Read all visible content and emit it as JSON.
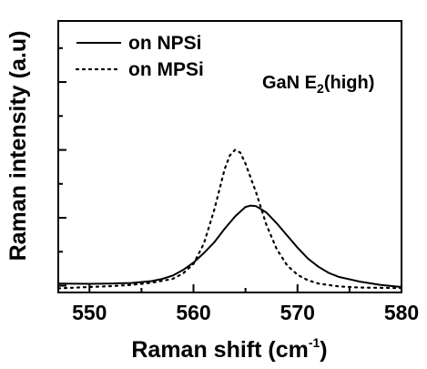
{
  "chart_data": {
    "type": "line",
    "xlabel_main": "Raman shift (cm",
    "xlabel_sup": "-1",
    "xlabel_end": ")",
    "ylabel": "Raman intensity (a.u)",
    "annotation_main": "GaN E",
    "annotation_sub": "2",
    "annotation_end": "(high)",
    "xlim": [
      547,
      580
    ],
    "ylim": [
      0,
      1
    ],
    "x_ticks": [
      550,
      560,
      570,
      580
    ],
    "x_tick_labels": [
      "550",
      "560",
      "570",
      "580"
    ],
    "y_tick_count": 4,
    "legend_position": "top-left",
    "series": [
      {
        "name": "on NPSi",
        "style": "solid",
        "x": [
          547,
          550,
          552,
          554,
          556,
          557,
          558,
          559,
          560,
          561,
          562,
          563,
          564,
          565,
          565.5,
          566,
          567,
          568,
          569,
          570,
          571,
          572,
          573,
          574,
          576,
          578,
          580
        ],
        "y": [
          0.033,
          0.032,
          0.033,
          0.035,
          0.042,
          0.05,
          0.062,
          0.083,
          0.11,
          0.145,
          0.185,
          0.235,
          0.28,
          0.315,
          0.32,
          0.318,
          0.295,
          0.255,
          0.21,
          0.165,
          0.125,
          0.095,
          0.072,
          0.057,
          0.04,
          0.028,
          0.02
        ]
      },
      {
        "name": "on MPSi",
        "style": "dotted",
        "x": [
          547,
          550,
          552,
          554,
          556,
          558,
          559,
          560,
          561,
          562,
          563,
          563.5,
          564,
          564.5,
          565,
          566,
          567,
          568,
          569,
          570,
          571,
          572,
          574,
          576,
          578,
          580
        ],
        "y": [
          0.015,
          0.02,
          0.023,
          0.028,
          0.036,
          0.05,
          0.07,
          0.105,
          0.18,
          0.305,
          0.455,
          0.505,
          0.525,
          0.515,
          0.475,
          0.37,
          0.25,
          0.16,
          0.1,
          0.065,
          0.045,
          0.033,
          0.022,
          0.018,
          0.017,
          0.016
        ]
      }
    ]
  }
}
